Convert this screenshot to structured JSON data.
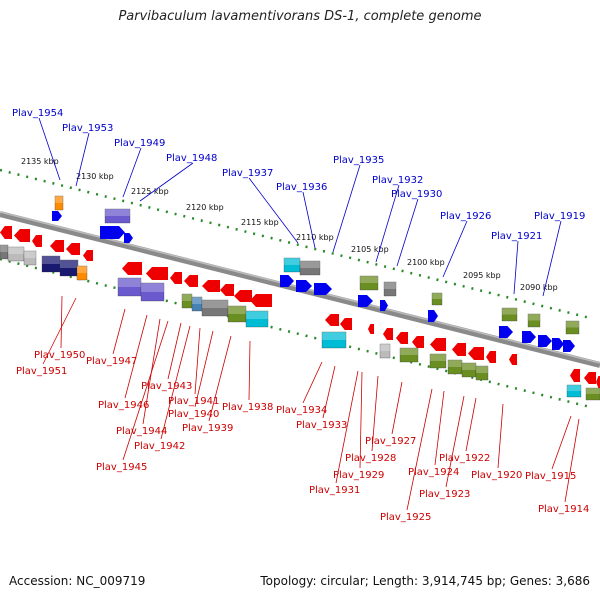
{
  "title": "Parvibaculum lavamentivorans DS-1, complete genome",
  "footer": {
    "accession": "Accession: NC_009719",
    "summary": "Topology: circular; Length: 3,914,745 bp; Genes: 3,686"
  },
  "colors": {
    "label_forward": "#0000cc",
    "label_reverse": "#cc0000",
    "axis": "#999999",
    "ticks": "#2a8a2a",
    "gene_forward": "#0000ee",
    "gene_reverse": "#ee0000",
    "gene_olive": "#6b8e23",
    "gene_cyan": "#00bcd4",
    "gene_purple": "#6a5acd",
    "gene_gray": "#777777",
    "gene_navy": "#191970",
    "gene_orange": "#ff8c00"
  },
  "ticks": [
    "2135 kbp",
    "2130 kbp",
    "2125 kbp",
    "2120 kbp",
    "2115 kbp",
    "2110 kbp",
    "2105 kbp",
    "2100 kbp",
    "2095 kbp",
    "2090 kbp"
  ],
  "forward_labels": [
    "Plav_1954",
    "Plav_1953",
    "Plav_1949",
    "Plav_1948",
    "Plav_1937",
    "Plav_1936",
    "Plav_1935",
    "Plav_1932",
    "Plav_1930",
    "Plav_1926",
    "Plav_1921",
    "Plav_1919"
  ],
  "reverse_labels": [
    "Plav_1950",
    "Plav_1951",
    "Plav_1947",
    "Plav_1946",
    "Plav_1944",
    "Plav_1945",
    "Plav_1943",
    "Plav_1942",
    "Plav_1941",
    "Plav_1940",
    "Plav_1939",
    "Plav_1938",
    "Plav_1934",
    "Plav_1933",
    "Plav_1931",
    "Plav_1929",
    "Plav_1928",
    "Plav_1927",
    "Plav_1925",
    "Plav_1924",
    "Plav_1923",
    "Plav_1922",
    "Plav_1920",
    "Plav_1915",
    "Plav_1914"
  ]
}
